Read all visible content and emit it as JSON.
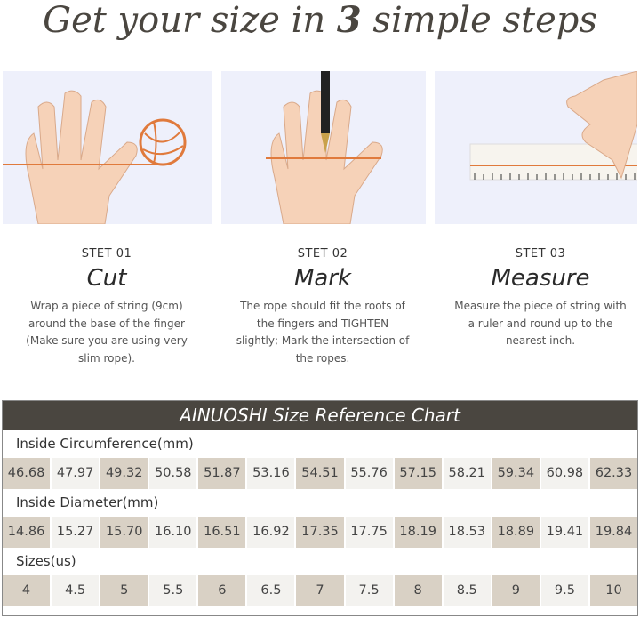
{
  "title": {
    "prefix": "Get your size in ",
    "number": "3",
    "suffix": " simple steps"
  },
  "steps": [
    {
      "num": "STET 01",
      "name": "Cut",
      "desc": "Wrap a piece of string (9cm) around the base of the finger (Make sure you are using very slim rope)."
    },
    {
      "num": "STET 02",
      "name": "Mark",
      "desc": "The rope should fit the roots of the fingers and TIGHTEN slightly; Mark the intersection of the ropes."
    },
    {
      "num": "STET 03",
      "name": "Measure",
      "desc": "Measure the piece of string with a ruler and round up to the nearest inch."
    }
  ],
  "chart": {
    "title": "AINUOSHI Size Reference Chart",
    "circumference_label": "Inside Circumference(mm)",
    "circumference": [
      "46.68",
      "47.97",
      "49.32",
      "50.58",
      "51.87",
      "53.16",
      "54.51",
      "55.76",
      "57.15",
      "58.21",
      "59.34",
      "60.98",
      "62.33"
    ],
    "diameter_label": "Inside Diameter(mm)",
    "diameter": [
      "14.86",
      "15.27",
      "15.70",
      "16.10",
      "16.51",
      "16.92",
      "17.35",
      "17.75",
      "18.19",
      "18.53",
      "18.89",
      "19.41",
      "19.84"
    ],
    "sizes_label": "Sizes(us)",
    "sizes": [
      "4",
      "4.5",
      "5",
      "5.5",
      "6",
      "6.5",
      "7",
      "7.5",
      "8",
      "8.5",
      "9",
      "9.5",
      "10"
    ]
  },
  "colors": {
    "panel_bg": "#eef0fb",
    "header_bg": "#4a4640",
    "cell_dark": "#d9d1c5",
    "cell_light": "#f3f2ef",
    "string": "#e07a3c",
    "skin": "#f6d2b8"
  }
}
